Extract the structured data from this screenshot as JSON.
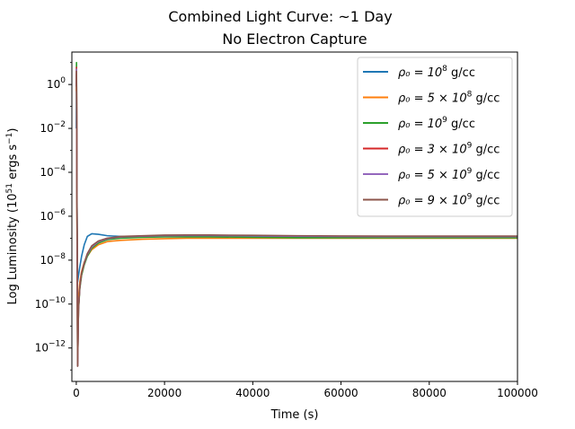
{
  "chart_data": {
    "type": "line",
    "title": "Combined Light Curve: ~1 Day",
    "subtitle": "No Electron Capture",
    "xlabel": "Time (s)",
    "ylabel": "Log Luminosity (10^51 ergs s^-1)",
    "ylabel_parts": {
      "pre": "Log Luminosity (10",
      "sup1": "51",
      "mid": " ergs s",
      "sup2": "−1",
      "post": ")"
    },
    "xlim": [
      -1000,
      100000
    ],
    "ylim": [
      3e-14,
      30.0
    ],
    "yscale": "log",
    "grid": false,
    "legend_position": "top-right",
    "x_ticks": [
      {
        "value": 0,
        "label": "0"
      },
      {
        "value": 20000,
        "label": "20000"
      },
      {
        "value": 40000,
        "label": "40000"
      },
      {
        "value": 60000,
        "label": "60000"
      },
      {
        "value": 80000,
        "label": "80000"
      },
      {
        "value": 100000,
        "label": "100000"
      }
    ],
    "y_ticks": [
      {
        "value": 1.0,
        "base": "10",
        "exp": "0"
      },
      {
        "value": 0.01,
        "base": "10",
        "exp": "−2"
      },
      {
        "value": 0.0001,
        "base": "10",
        "exp": "−4"
      },
      {
        "value": 1e-06,
        "base": "10",
        "exp": "−6"
      },
      {
        "value": 1e-08,
        "base": "10",
        "exp": "−8"
      },
      {
        "value": 1e-10,
        "base": "10",
        "exp": "−10"
      },
      {
        "value": 1e-12,
        "base": "10",
        "exp": "−12"
      }
    ],
    "series": [
      {
        "legend": {
          "pre": "ρ₀ = 10",
          "sup": "8",
          "post": " g/cc"
        },
        "color": "#1f77b4",
        "x": [
          0,
          50,
          150,
          300,
          500,
          800,
          1200,
          1800,
          2500,
          3500,
          5000,
          7000,
          10000,
          15000,
          20000,
          25000,
          30000,
          40000,
          50000,
          60000,
          70000,
          80000,
          90000,
          100000
        ],
        "y": [
          0.01,
          3,
          1e-05,
          1e-09,
          2e-09,
          5e-09,
          1.5e-08,
          5e-08,
          1.2e-07,
          1.6e-07,
          1.5e-07,
          1.3e-07,
          1.2e-07,
          1.2e-07,
          1.2e-07,
          1.2e-07,
          1.2e-07,
          1.15e-07,
          1.1e-07,
          1.1e-07,
          1.1e-07,
          1.1e-07,
          1.1e-07,
          1.1e-07
        ]
      },
      {
        "legend": {
          "pre": "ρ₀ = 5 × 10",
          "sup": "8",
          "post": " g/cc"
        },
        "color": "#ff7f0e",
        "x": [
          0,
          50,
          150,
          300,
          500,
          800,
          1200,
          1800,
          2500,
          3500,
          5000,
          7000,
          10000,
          15000,
          20000,
          25000,
          30000,
          40000,
          50000,
          60000,
          70000,
          80000,
          90000,
          100000
        ],
        "y": [
          0.5,
          3,
          1e-06,
          1e-12,
          2e-10,
          1e-09,
          3e-09,
          8e-09,
          1.5e-08,
          3e-08,
          5e-08,
          7e-08,
          8e-08,
          9e-08,
          9.5e-08,
          1e-07,
          1e-07,
          1e-07,
          1e-07,
          1e-07,
          1e-07,
          1e-07,
          1e-07,
          1e-07
        ]
      },
      {
        "legend": {
          "pre": "ρ₀ = 10",
          "sup": "9",
          "post": " g/cc"
        },
        "color": "#2ca02c",
        "x": [
          0,
          50,
          150,
          300,
          500,
          800,
          1200,
          1800,
          2500,
          3500,
          5000,
          7000,
          10000,
          15000,
          20000,
          25000,
          30000,
          40000,
          50000,
          60000,
          70000,
          80000,
          90000,
          100000
        ],
        "y": [
          1,
          10,
          1e-05,
          1.5e-13,
          5e-11,
          5e-10,
          2e-09,
          6e-09,
          1.5e-08,
          3.5e-08,
          6e-08,
          8.5e-08,
          1e-07,
          1.1e-07,
          1.15e-07,
          1.15e-07,
          1.15e-07,
          1.1e-07,
          1.05e-07,
          1.05e-07,
          1.05e-07,
          1.05e-07,
          1.05e-07,
          1.05e-07
        ]
      },
      {
        "legend": {
          "pre": "ρ₀ = 3 × 10",
          "sup": "9",
          "post": " g/cc"
        },
        "color": "#d62728",
        "x": [
          0,
          50,
          150,
          300,
          500,
          800,
          1200,
          1800,
          2500,
          3500,
          5000,
          7000,
          10000,
          15000,
          20000,
          25000,
          30000,
          40000,
          50000,
          60000,
          70000,
          80000,
          90000,
          100000
        ],
        "y": [
          0.8,
          6,
          1e-05,
          1.5e-13,
          6e-11,
          6e-10,
          2.5e-09,
          7e-09,
          1.8e-08,
          4e-08,
          7e-08,
          9.5e-08,
          1.15e-07,
          1.25e-07,
          1.3e-07,
          1.35e-07,
          1.35e-07,
          1.3e-07,
          1.25e-07,
          1.22e-07,
          1.2e-07,
          1.2e-07,
          1.2e-07,
          1.2e-07
        ]
      },
      {
        "legend": {
          "pre": "ρ₀ = 5 × 10",
          "sup": "9",
          "post": " g/cc"
        },
        "color": "#9467bd",
        "x": [
          0,
          50,
          150,
          300,
          500,
          800,
          1200,
          1800,
          2500,
          3500,
          5000,
          7000,
          10000,
          15000,
          20000,
          25000,
          30000,
          40000,
          50000,
          60000,
          70000,
          80000,
          90000,
          100000
        ],
        "y": [
          0.8,
          5,
          1e-05,
          1.5e-13,
          6e-11,
          6e-10,
          2.5e-09,
          7e-09,
          1.8e-08,
          4e-08,
          7e-08,
          9.5e-08,
          1.15e-07,
          1.25e-07,
          1.3e-07,
          1.32e-07,
          1.32e-07,
          1.28e-07,
          1.23e-07,
          1.2e-07,
          1.18e-07,
          1.18e-07,
          1.18e-07,
          1.18e-07
        ]
      },
      {
        "legend": {
          "pre": "ρ₀ = 9 × 10",
          "sup": "9",
          "post": " g/cc"
        },
        "color": "#8c564b",
        "x": [
          0,
          50,
          150,
          300,
          500,
          800,
          1200,
          1800,
          2500,
          3500,
          5000,
          7000,
          10000,
          15000,
          20000,
          25000,
          30000,
          40000,
          50000,
          60000,
          70000,
          80000,
          90000,
          100000
        ],
        "y": [
          0.8,
          4,
          1e-05,
          1.5e-13,
          6e-11,
          6e-10,
          2.5e-09,
          7.5e-09,
          2e-08,
          4.5e-08,
          7.5e-08,
          1e-07,
          1.2e-07,
          1.3e-07,
          1.38e-07,
          1.4e-07,
          1.4e-07,
          1.35e-07,
          1.3e-07,
          1.27e-07,
          1.25e-07,
          1.25e-07,
          1.25e-07,
          1.25e-07
        ]
      }
    ]
  }
}
